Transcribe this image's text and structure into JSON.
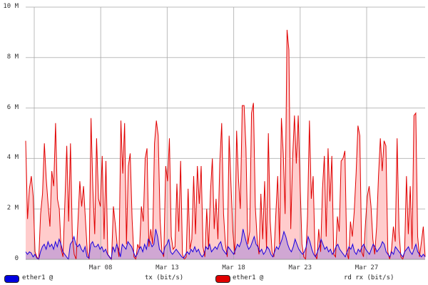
{
  "chart_data": {
    "type": "area",
    "title": "",
    "xlabel": "",
    "ylabel": "",
    "ylim": [
      0,
      10000000
    ],
    "grid": true,
    "y_ticks": [
      {
        "value": 0,
        "label": "0"
      },
      {
        "value": 2000000,
        "label": "2 M"
      },
      {
        "value": 4000000,
        "label": "4 M"
      },
      {
        "value": 6000000,
        "label": "6 M"
      },
      {
        "value": 8000000,
        "label": "8 M"
      },
      {
        "value": 10000000,
        "label": "10 M"
      }
    ],
    "x_ticks": [
      {
        "pos": 0.0,
        "label": ""
      },
      {
        "pos": 0.1667,
        "label": "Mar 08"
      },
      {
        "pos": 0.3333,
        "label": "Mar 13"
      },
      {
        "pos": 0.5,
        "label": "Mar 18"
      },
      {
        "pos": 0.6667,
        "label": "Mar 23"
      },
      {
        "pos": 0.8333,
        "label": "Mar 27"
      }
    ],
    "legend_position": "bottom",
    "series": [
      {
        "name": "ether1 @ rd rx (bit/s)",
        "color": "#e00000",
        "fill": "#ffcccc",
        "values_M": [
          4.7,
          1.6,
          2.8,
          3.3,
          2.5,
          0.3,
          0.1,
          0.0,
          1.8,
          2.6,
          4.6,
          3.2,
          2.2,
          1.3,
          3.5,
          2.9,
          5.4,
          2.4,
          2.0,
          0.4,
          0.1,
          2.3,
          4.5,
          1.5,
          4.6,
          0.9,
          0.2,
          0.0,
          1.5,
          3.1,
          2.1,
          2.9,
          1.6,
          0.3,
          0.0,
          5.6,
          2.8,
          1.0,
          4.8,
          2.4,
          2.1,
          4.1,
          0.8,
          3.9,
          0.2,
          0.1,
          0.0,
          2.1,
          1.4,
          0.6,
          0.1,
          5.5,
          3.4,
          5.4,
          0.6,
          3.7,
          4.2,
          1.6,
          0.1,
          0.0,
          0.6,
          0.4,
          2.1,
          1.5,
          4.0,
          4.4,
          0.5,
          1.2,
          0.6,
          4.6,
          5.5,
          4.9,
          1.6,
          0.3,
          0.1,
          3.7,
          3.1,
          4.8,
          0.9,
          0.4,
          0.5,
          3.0,
          1.1,
          3.9,
          0.2,
          0.0,
          0.1,
          2.8,
          0.4,
          0.8,
          3.3,
          1.0,
          3.7,
          2.2,
          3.7,
          0.5,
          0.1,
          2.0,
          0.4,
          2.7,
          4.0,
          1.2,
          2.4,
          0.8,
          3.8,
          5.4,
          1.8,
          0.6,
          0.1,
          4.9,
          2.9,
          1.1,
          0.2,
          5.1,
          3.2,
          2.0,
          6.1,
          6.1,
          4.4,
          0.6,
          1.1,
          5.8,
          6.2,
          2.1,
          0.8,
          0.2,
          2.6,
          0.8,
          3.1,
          0.4,
          5.0,
          1.5,
          0.3,
          0.1,
          1.8,
          3.3,
          0.6,
          5.6,
          4.2,
          1.8,
          9.1,
          8.3,
          1.2,
          4.0,
          5.7,
          3.8,
          5.7,
          3.0,
          0.6,
          0.1,
          0.0,
          1.7,
          5.5,
          2.4,
          3.3,
          0.2,
          0.0,
          1.2,
          0.3,
          2.8,
          4.1,
          0.9,
          4.4,
          2.3,
          4.1,
          0.2,
          0.1,
          1.7,
          1.1,
          3.9,
          4.0,
          4.3,
          0.3,
          0.0,
          1.5,
          0.9,
          1.9,
          3.4,
          5.3,
          4.9,
          0.3,
          0.1,
          1.4,
          2.5,
          2.9,
          2.1,
          0.8,
          0.2,
          1.3,
          3.3,
          4.8,
          3.5,
          4.7,
          4.5,
          0.3,
          0.0,
          0.4,
          1.3,
          0.7,
          4.8,
          1.1,
          0.1,
          0.0,
          0.3,
          3.3,
          1.0,
          2.9,
          0.4,
          5.7,
          5.8,
          0.9,
          0.1,
          0.7,
          1.3,
          0.1
        ],
        "values": []
      },
      {
        "name": "ether1 @ tx (bit/s)",
        "color": "#1a00e0",
        "fill": "#c8a0d4",
        "values_M": [
          0.3,
          0.2,
          0.3,
          0.25,
          0.1,
          0.2,
          0.05,
          0.0,
          0.3,
          0.5,
          0.6,
          0.4,
          0.7,
          0.5,
          0.6,
          0.4,
          0.7,
          0.5,
          0.8,
          0.6,
          0.3,
          0.2,
          0.1,
          0.0,
          0.6,
          0.7,
          0.9,
          0.6,
          0.5,
          0.6,
          0.4,
          0.3,
          0.5,
          0.1,
          0.05,
          0.6,
          0.7,
          0.5,
          0.5,
          0.6,
          0.4,
          0.5,
          0.3,
          0.4,
          0.2,
          0.1,
          0.0,
          0.5,
          0.3,
          0.6,
          0.4,
          0.1,
          0.6,
          0.5,
          0.4,
          0.7,
          0.6,
          0.5,
          0.3,
          0.1,
          0.2,
          0.4,
          0.5,
          0.3,
          0.6,
          0.4,
          0.8,
          0.7,
          0.5,
          0.6,
          1.2,
          0.9,
          0.4,
          0.3,
          0.2,
          0.5,
          0.6,
          0.8,
          0.3,
          0.2,
          0.3,
          0.4,
          0.3,
          0.2,
          0.1,
          0.05,
          0.2,
          0.3,
          0.2,
          0.4,
          0.3,
          0.5,
          0.3,
          0.4,
          0.2,
          0.1,
          0.2,
          0.5,
          0.4,
          0.6,
          0.3,
          0.4,
          0.5,
          0.4,
          0.6,
          0.7,
          0.4,
          0.3,
          0.2,
          0.5,
          0.4,
          0.3,
          0.2,
          0.4,
          0.6,
          0.5,
          0.7,
          1.2,
          0.9,
          0.6,
          0.4,
          0.5,
          0.7,
          0.9,
          0.6,
          0.5,
          0.3,
          0.4,
          0.2,
          0.3,
          0.5,
          0.4,
          0.2,
          0.1,
          0.3,
          0.5,
          0.4,
          0.6,
          0.8,
          1.1,
          0.9,
          0.6,
          0.4,
          0.3,
          0.5,
          0.8,
          0.6,
          0.4,
          0.3,
          0.2,
          0.3,
          0.5,
          0.9,
          0.7,
          0.4,
          0.2,
          0.1,
          0.3,
          0.5,
          0.8,
          0.6,
          0.4,
          0.5,
          0.3,
          0.4,
          0.2,
          0.3,
          0.5,
          0.6,
          0.4,
          0.3,
          0.2,
          0.1,
          0.3,
          0.5,
          0.4,
          0.6,
          0.3,
          0.2,
          0.4,
          0.3,
          0.5,
          0.6,
          0.4,
          0.3,
          0.2,
          0.4,
          0.6,
          0.5,
          0.3,
          0.4,
          0.5,
          0.7,
          0.6,
          0.3,
          0.2,
          0.1,
          0.3,
          0.2,
          0.5,
          0.4,
          0.3,
          0.2,
          0.1,
          0.3,
          0.4,
          0.5,
          0.3,
          0.2,
          0.4,
          0.6,
          0.3,
          0.2,
          0.1,
          0.2,
          0.1
        ]
      }
    ]
  },
  "legend": {
    "items": [
      {
        "swatch_color": "#0000e0",
        "label_left": "ether1 @",
        "label_right": "tx (bit/s)"
      },
      {
        "swatch_color": "#e00000",
        "label_left": "ether1 @",
        "label_right": "rd rx (bit/s)"
      }
    ]
  }
}
